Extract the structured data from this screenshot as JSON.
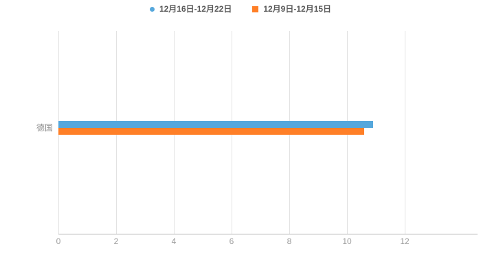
{
  "legend": {
    "items": [
      {
        "label": "12月16日-12月22日",
        "color": "#55a7dc",
        "marker": "circle"
      },
      {
        "label": "12月9日-12月15日",
        "color": "#ff7f27",
        "marker": "square"
      }
    ]
  },
  "chart_data": {
    "type": "bar",
    "orientation": "horizontal",
    "title": "",
    "xlabel": "",
    "ylabel": "",
    "categories": [
      "德国"
    ],
    "series": [
      {
        "name": "12月16日-12月22日",
        "color": "#55a7dc",
        "values": [
          10.9
        ]
      },
      {
        "name": "12月9日-12月15日",
        "color": "#ff7f27",
        "values": [
          10.6
        ]
      }
    ],
    "xlim": [
      0,
      12
    ],
    "xticks": [
      0,
      2,
      4,
      6,
      8,
      10,
      12
    ],
    "grid": true,
    "legend_position": "top"
  }
}
